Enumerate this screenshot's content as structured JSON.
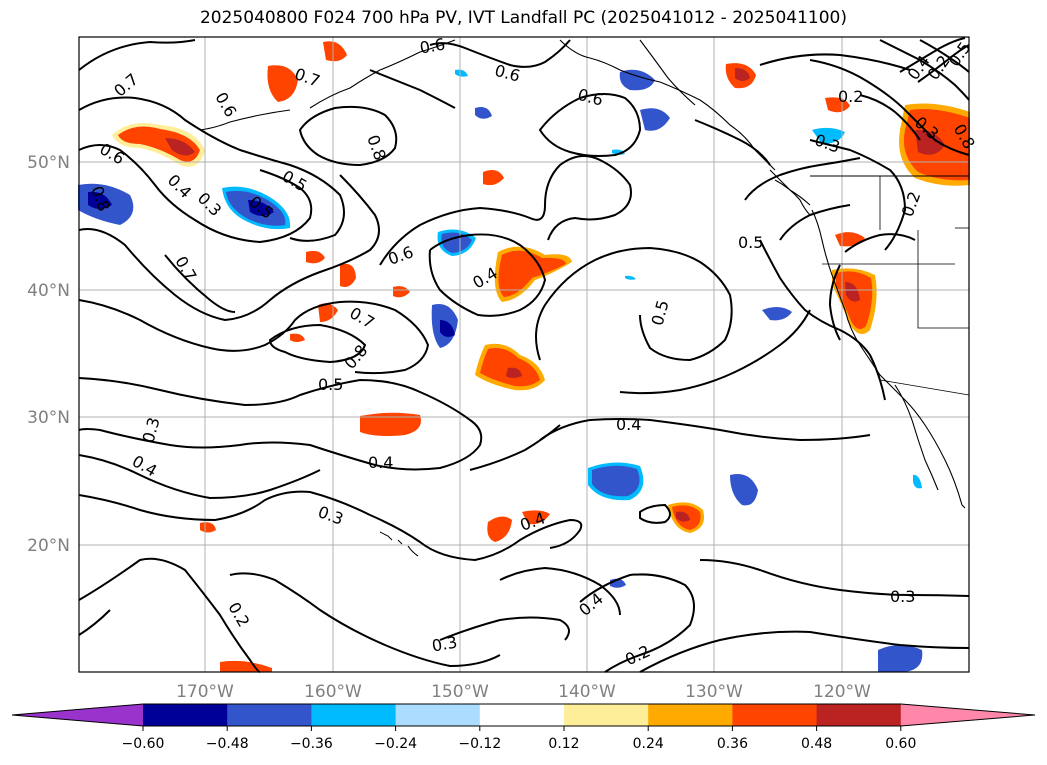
{
  "title": "2025040800 F024 700 hPa PV, IVT Landfall PC (2025041012 - 2025041100)",
  "axes": {
    "lat_labels": [
      "50°N",
      "40°N",
      "30°N",
      "20°N"
    ],
    "lon_labels": [
      "170°W",
      "160°W",
      "150°W",
      "140°W",
      "130°W",
      "120°W"
    ]
  },
  "colorbar": {
    "colors": [
      "#9933cc",
      "#000099",
      "#3355cc",
      "#00bbff",
      "#aaddff",
      "#ffffff",
      "#ffee99",
      "#ffaa00",
      "#ff4400",
      "#bb2222",
      "#ff88aa"
    ],
    "tick_labels": [
      "−0.60",
      "−0.48",
      "−0.36",
      "−0.24",
      "−0.12",
      "0.12",
      "0.24",
      "0.36",
      "0.48",
      "0.60"
    ]
  },
  "contour_labels": [
    "0.7",
    "0.6",
    "0.6",
    "0.6",
    "0.6",
    "0.8",
    "0.7",
    "0.5",
    "0.4",
    "0.3",
    "0.8",
    "0.6",
    "0.7",
    "0.8",
    "0.5",
    "0.5",
    "0.4",
    "0.5",
    "0.4",
    "0.3",
    "0.4",
    "0.4",
    "0.3",
    "0.4",
    "0.4",
    "0.3",
    "0.2",
    "0.2",
    "0.3",
    "0.2",
    "0.2",
    "0.3",
    "0.3",
    "0.5",
    "0.6",
    "0.5",
    "0.4",
    "0.2",
    "0.7",
    "0.8"
  ],
  "chart_data": {
    "type": "contour-map",
    "projection": "cylindrical",
    "lon_range": [
      -180,
      -110
    ],
    "lat_range": [
      10,
      60
    ],
    "field_contours": "700 hPa PV",
    "field_shaded": "IVT Landfall PC",
    "colorbar_levels": [
      -0.6,
      -0.48,
      -0.36,
      -0.24,
      -0.12,
      0.12,
      0.24,
      0.36,
      0.48,
      0.6
    ],
    "grid": true
  }
}
